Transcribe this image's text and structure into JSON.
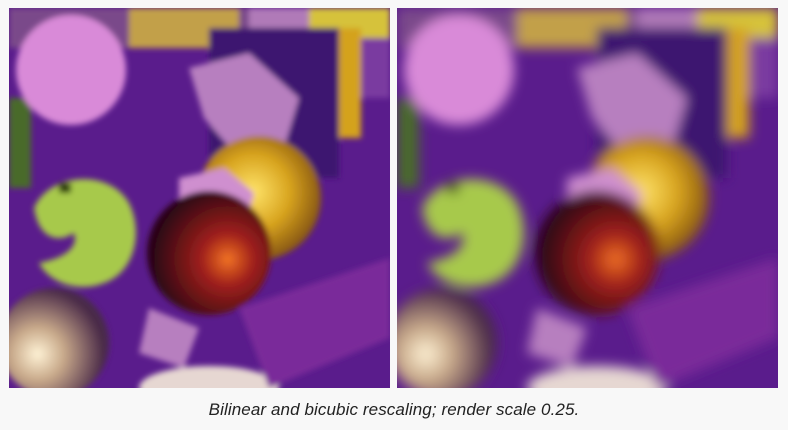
{
  "caption": "Bilinear and bicubic rescaling; render scale 0.25.",
  "colors": {
    "background": "#f8f8f8",
    "purple_bg": "#5a1c8c",
    "pink_ball": "#d98ad8",
    "lavender": "#b77fbf",
    "gold": "#d4a21a",
    "lime": "#a7c94c",
    "dark_red": "#4a0c1e",
    "orange_glow": "#e0541c"
  },
  "panels": [
    {
      "id": "bilinear",
      "filter": "pixelated"
    },
    {
      "id": "bicubic",
      "filter": "smooth"
    }
  ]
}
